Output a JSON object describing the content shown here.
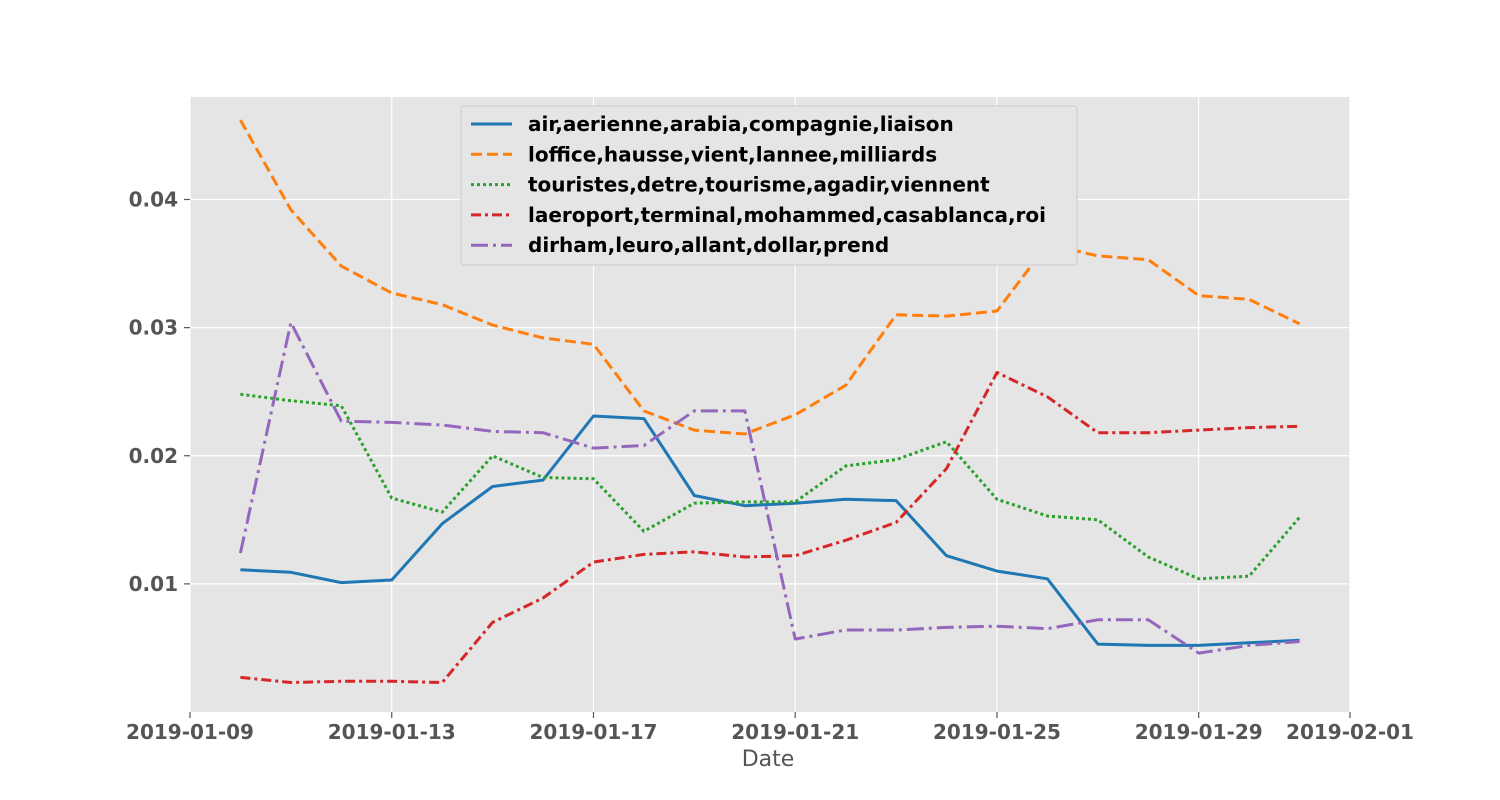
{
  "chart_data": {
    "type": "line",
    "title": "",
    "xlabel": "Date",
    "ylabel": "",
    "x": [
      "2019-01-10",
      "2019-01-11",
      "2019-01-12",
      "2019-01-13",
      "2019-01-14",
      "2019-01-15",
      "2019-01-16",
      "2019-01-17",
      "2019-01-18",
      "2019-01-19",
      "2019-01-20",
      "2019-01-21",
      "2019-01-22",
      "2019-01-23",
      "2019-01-24",
      "2019-01-25",
      "2019-01-26",
      "2019-01-27",
      "2019-01-28",
      "2019-01-29",
      "2019-01-30",
      "2019-01-31"
    ],
    "xlim": [
      "2019-01-09",
      "2019-02-01"
    ],
    "xticks": [
      "2019-01-09",
      "2019-01-13",
      "2019-01-17",
      "2019-01-21",
      "2019-01-25",
      "2019-01-29",
      "2019-02-01"
    ],
    "ylim": [
      0,
      0.048
    ],
    "yticks": [
      0.01,
      0.02,
      0.03,
      0.04
    ],
    "ytick_labels": [
      "0.01",
      "0.02",
      "0.03",
      "0.04"
    ],
    "grid": true,
    "legend_position": "upper-center",
    "series": [
      {
        "name": "air,aerienne,arabia,compagnie,liaison",
        "color": "#1f77b4",
        "style": "solid",
        "values": [
          0.0111,
          0.0109,
          0.0101,
          0.0103,
          0.0147,
          0.0176,
          0.0181,
          0.0231,
          0.0229,
          0.0169,
          0.0161,
          0.0163,
          0.0166,
          0.0165,
          0.0122,
          0.011,
          0.0104,
          0.0053,
          0.0052,
          0.0052,
          0.0054,
          0.0056
        ]
      },
      {
        "name": "loffice,hausse,vient,lannee,milliards",
        "color": "#ff7f0e",
        "style": "dashed",
        "values": [
          0.0462,
          0.0392,
          0.0348,
          0.0327,
          0.0318,
          0.0302,
          0.0292,
          0.0287,
          0.0235,
          0.022,
          0.0217,
          0.0232,
          0.0255,
          0.031,
          0.0309,
          0.0313,
          0.0365,
          0.0356,
          0.0353,
          0.0325,
          0.0322,
          0.0303
        ]
      },
      {
        "name": "touristes,detre,tourisme,agadir,viennent",
        "color": "#2ca02c",
        "style": "dotted",
        "values": [
          0.0248,
          0.0243,
          0.0239,
          0.0167,
          0.0156,
          0.02,
          0.0183,
          0.0182,
          0.0141,
          0.0163,
          0.0164,
          0.0164,
          0.0192,
          0.0197,
          0.0211,
          0.0166,
          0.0153,
          0.015,
          0.0121,
          0.0104,
          0.0106,
          0.0152
        ]
      },
      {
        "name": "laeroport,terminal,mohammed,casablanca,roi",
        "color": "#d62728",
        "style": "dashdot",
        "values": [
          0.0027,
          0.0023,
          0.0024,
          0.0024,
          0.0023,
          0.007,
          0.0089,
          0.0117,
          0.0123,
          0.0125,
          0.0121,
          0.0122,
          0.0134,
          0.0148,
          0.019,
          0.0265,
          0.0246,
          0.0218,
          0.0218,
          0.022,
          0.0222,
          0.0223
        ]
      },
      {
        "name": "dirham,leuro,allant,dollar,prend",
        "color": "#9467bd",
        "style": "dashdot-long",
        "values": [
          0.0124,
          0.0304,
          0.0227,
          0.0226,
          0.0224,
          0.0219,
          0.0218,
          0.0206,
          0.0208,
          0.0235,
          0.0235,
          0.0057,
          0.0064,
          0.0064,
          0.0066,
          0.0067,
          0.0065,
          0.0072,
          0.0072,
          0.0046,
          0.0052,
          0.0055
        ]
      }
    ]
  }
}
